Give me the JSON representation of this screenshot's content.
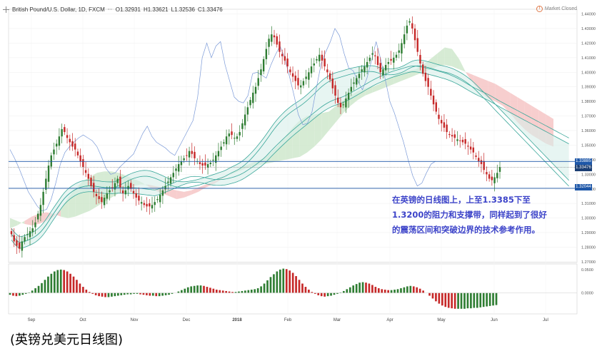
{
  "header": {
    "symbol": "British Pound/U.S. Dollar, 1D, FXCM",
    "open": "O1.32931",
    "high": "H1.33621",
    "low": "L1.32536",
    "close": "C1.33476",
    "market_status": "Market Closed"
  },
  "annotation": {
    "line1": "在英镑的日线图上，上至1.3385下至",
    "line2": "1.3200的阻力和支撑带，同样起到了很好",
    "line3": "的震荡区间和突破边界的技术参考作用。"
  },
  "caption": "(英镑兑美元日线图)",
  "colors": {
    "up": "#2e7d32",
    "down": "#c62828",
    "line": "#7b9ad8",
    "cloud_up": "#cfe8cc",
    "cloud_down": "#f6c6c6",
    "ma": "#3aa79a",
    "level_line": "#1e57a8",
    "annotation": "#3d44c9"
  },
  "chart_data": {
    "type": "candlestick",
    "y_ticks": [
      "1.44000",
      "1.43000",
      "1.42000",
      "1.41000",
      "1.40000",
      "1.39000",
      "1.38000",
      "1.37000",
      "1.36000",
      "1.35000",
      "1.34000",
      "1.33000",
      "1.32000",
      "1.31000",
      "1.30000",
      "1.29000",
      "1.28000",
      "1.27000"
    ],
    "ylim": [
      1.2695,
      1.4432
    ],
    "x_labels": [
      "Sep",
      "Oct",
      "Nov",
      "Dec",
      "2018",
      "Feb",
      "Mar",
      "Apr",
      "May",
      "Jun",
      "Jul"
    ],
    "price_labels": {
      "resistance": "1.33885",
      "last": "1.33476",
      "support": "1.32044"
    },
    "levels": [
      1.33885,
      1.33476,
      1.32044
    ],
    "osc_ticks": [
      "0.0500",
      "0.0000"
    ],
    "osc_ylim": [
      -0.045,
      0.062
    ],
    "daily_closes": [
      1.289,
      1.284,
      1.281,
      1.279,
      1.284,
      1.287,
      1.289,
      1.291,
      1.293,
      1.297,
      1.303,
      1.309,
      1.318,
      1.327,
      1.336,
      1.343,
      1.347,
      1.351,
      1.356,
      1.361,
      1.359,
      1.355,
      1.352,
      1.349,
      1.347,
      1.343,
      1.339,
      1.335,
      1.331,
      1.327,
      1.322,
      1.318,
      1.315,
      1.313,
      1.311,
      1.314,
      1.317,
      1.319,
      1.321,
      1.324,
      1.327,
      1.321,
      1.317,
      1.319,
      1.322,
      1.32,
      1.317,
      1.314,
      1.312,
      1.311,
      1.309,
      1.308,
      1.308,
      1.309,
      1.311,
      1.313,
      1.316,
      1.319,
      1.322,
      1.325,
      1.328,
      1.331,
      1.334,
      1.337,
      1.339,
      1.341,
      1.343,
      1.346,
      1.344,
      1.341,
      1.339,
      1.337,
      1.336,
      1.336,
      1.337,
      1.338,
      1.34,
      1.343,
      1.346,
      1.349,
      1.352,
      1.356,
      1.358,
      1.357,
      1.355,
      1.356,
      1.359,
      1.365,
      1.371,
      1.376,
      1.381,
      1.386,
      1.39,
      1.396,
      1.402,
      1.409,
      1.416,
      1.423,
      1.426,
      1.424,
      1.419,
      1.414,
      1.411,
      1.408,
      1.404,
      1.4,
      1.397,
      1.394,
      1.391,
      1.391,
      1.394,
      1.397,
      1.4,
      1.404,
      1.406,
      1.409,
      1.412,
      1.408,
      1.404,
      1.4,
      1.395,
      1.389,
      1.384,
      1.379,
      1.376,
      1.378,
      1.382,
      1.386,
      1.39,
      1.393,
      1.396,
      1.399,
      1.402,
      1.404,
      1.407,
      1.41,
      1.413,
      1.411,
      1.405,
      1.4,
      1.402,
      1.405,
      1.407,
      1.408,
      1.41,
      1.412,
      1.415,
      1.42,
      1.426,
      1.432,
      1.435,
      1.43,
      1.422,
      1.414,
      1.406,
      1.399,
      1.394,
      1.39,
      1.384,
      1.378,
      1.373,
      1.368,
      1.365,
      1.362,
      1.359,
      1.357,
      1.356,
      1.355,
      1.354,
      1.353,
      1.352,
      1.351,
      1.349,
      1.347,
      1.345,
      1.342,
      1.339,
      1.337,
      1.333,
      1.33,
      1.327,
      1.326,
      1.328,
      1.331,
      1.335
    ],
    "line_overlay": [
      1.347,
      1.341,
      1.334,
      1.326,
      1.318,
      1.313,
      1.308,
      1.305,
      1.306,
      1.313,
      1.324,
      1.337,
      1.345,
      1.349,
      1.352,
      1.355,
      1.357,
      1.355,
      1.353,
      1.349,
      1.342,
      1.334,
      1.33,
      1.331,
      1.335,
      1.338,
      1.341,
      1.344,
      1.351,
      1.358,
      1.363,
      1.356,
      1.352,
      1.35,
      1.348,
      1.345,
      1.343,
      1.349,
      1.355,
      1.361,
      1.367,
      1.383,
      1.41,
      1.42,
      1.41,
      1.418,
      1.421,
      1.405,
      1.394,
      1.383,
      1.38,
      1.379,
      1.384,
      1.399,
      1.4,
      1.398,
      1.396,
      1.405,
      1.412,
      1.418,
      1.41,
      1.398,
      1.385,
      1.371,
      1.364,
      1.365,
      1.373,
      1.39,
      1.406,
      1.414,
      1.421,
      1.43,
      1.425,
      1.413,
      1.403,
      1.401,
      1.394,
      1.388,
      1.396,
      1.408,
      1.421,
      1.409,
      1.395,
      1.38,
      1.372,
      1.362,
      1.352,
      1.34,
      1.329,
      1.322,
      1.324,
      1.331,
      1.337,
      1.339
    ],
    "cloud_a": [
      1.3,
      1.298,
      1.296,
      1.295,
      1.296,
      1.298,
      1.301,
      1.306,
      1.314,
      1.32,
      1.325,
      1.328,
      1.331,
      1.332,
      1.332,
      1.331,
      1.329,
      1.327,
      1.325,
      1.322,
      1.319,
      1.317,
      1.315,
      1.313,
      1.314,
      1.316,
      1.318,
      1.321,
      1.323,
      1.326,
      1.329,
      1.332,
      1.335,
      1.337,
      1.339,
      1.341,
      1.345,
      1.35,
      1.356,
      1.362,
      1.367,
      1.37,
      1.371,
      1.372,
      1.373,
      1.377,
      1.381,
      1.384,
      1.387,
      1.389,
      1.39,
      1.392,
      1.395,
      1.398,
      1.4,
      1.401,
      1.402,
      1.405,
      1.409,
      1.413,
      1.417,
      1.416,
      1.409,
      1.399,
      1.392,
      1.386,
      1.382,
      1.38,
      1.377,
      1.372,
      1.366,
      1.361,
      1.357,
      1.354,
      1.351,
      1.349
    ],
    "cloud_b": [
      1.293,
      1.295,
      1.298,
      1.301,
      1.303,
      1.304,
      1.303,
      1.301,
      1.3,
      1.301,
      1.303,
      1.305,
      1.308,
      1.311,
      1.314,
      1.317,
      1.32,
      1.322,
      1.323,
      1.323,
      1.322,
      1.321,
      1.32,
      1.319,
      1.318,
      1.319,
      1.321,
      1.323,
      1.325,
      1.327,
      1.329,
      1.331,
      1.333,
      1.335,
      1.336,
      1.337,
      1.338,
      1.339,
      1.34,
      1.341,
      1.342,
      1.345,
      1.349,
      1.354,
      1.36,
      1.366,
      1.372,
      1.377,
      1.381,
      1.384,
      1.386,
      1.388,
      1.39,
      1.392,
      1.394,
      1.396,
      1.398,
      1.4,
      1.402,
      1.404,
      1.405,
      1.404,
      1.402,
      1.4,
      1.398,
      1.396,
      1.394,
      1.392,
      1.389,
      1.386,
      1.383,
      1.38,
      1.377,
      1.374,
      1.371,
      1.368
    ],
    "oscillator": [
      -0.004,
      -0.006,
      -0.007,
      -0.006,
      -0.004,
      -0.002,
      0.001,
      0.005,
      0.01,
      0.015,
      0.021,
      0.028,
      0.035,
      0.041,
      0.046,
      0.049,
      0.05,
      0.049,
      0.046,
      0.041,
      0.035,
      0.028,
      0.02,
      0.013,
      0.007,
      0.002,
      -0.002,
      -0.005,
      -0.007,
      -0.008,
      -0.009,
      -0.009,
      -0.008,
      -0.007,
      -0.006,
      -0.005,
      -0.004,
      -0.003,
      -0.003,
      -0.002,
      -0.002,
      -0.003,
      -0.004,
      -0.005,
      -0.006,
      -0.006,
      -0.007,
      -0.007,
      -0.006,
      -0.005,
      -0.004,
      -0.002,
      0.0,
      0.003,
      0.006,
      0.009,
      0.012,
      0.014,
      0.015,
      0.016,
      0.016,
      0.015,
      0.013,
      0.011,
      0.009,
      0.007,
      0.006,
      0.005,
      0.004,
      0.003,
      0.002,
      0.002,
      0.003,
      0.004,
      0.005,
      0.006,
      0.007,
      0.008,
      0.01,
      0.014,
      0.02,
      0.027,
      0.034,
      0.04,
      0.046,
      0.05,
      0.052,
      0.051,
      0.048,
      0.043,
      0.036,
      0.028,
      0.02,
      0.013,
      0.007,
      0.002,
      -0.002,
      -0.005,
      -0.007,
      -0.008,
      -0.007,
      -0.006,
      -0.004,
      -0.002,
      0.001,
      0.004,
      0.008,
      0.012,
      0.016,
      0.019,
      0.022,
      0.023,
      0.022,
      0.02,
      0.017,
      0.013,
      0.01,
      0.008,
      0.007,
      0.006,
      0.006,
      0.007,
      0.008,
      0.01,
      0.012,
      0.014,
      0.015,
      0.014,
      0.012,
      0.009,
      0.005,
      0.0,
      -0.006,
      -0.012,
      -0.018,
      -0.023,
      -0.027,
      -0.03,
      -0.032,
      -0.033,
      -0.034,
      -0.034,
      -0.034,
      -0.034,
      -0.033,
      -0.033,
      -0.032,
      -0.032,
      -0.031,
      -0.03,
      -0.029,
      -0.028,
      -0.027,
      -0.026
    ]
  }
}
